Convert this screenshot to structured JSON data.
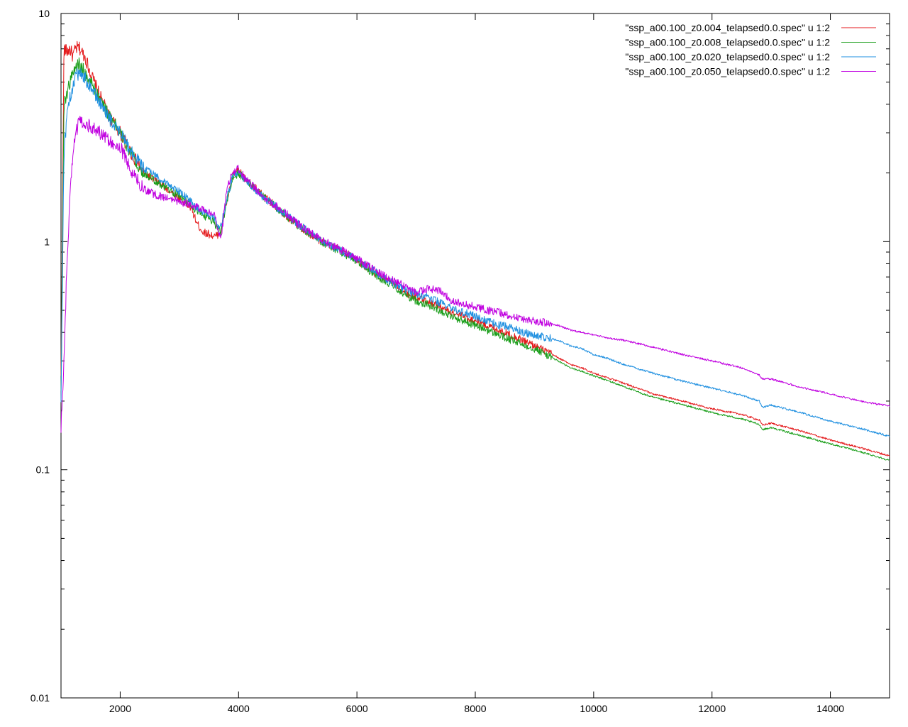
{
  "chart_data": {
    "type": "line",
    "title": "",
    "xlabel": "",
    "ylabel": "",
    "xlim": [
      1000,
      15000
    ],
    "ylim": [
      0.01,
      10
    ],
    "y_scale": "log",
    "grid": false,
    "legend_position": "top-right",
    "x_ticks": [
      {
        "value": 2000,
        "label": "2000"
      },
      {
        "value": 4000,
        "label": "4000"
      },
      {
        "value": 6000,
        "label": "6000"
      },
      {
        "value": 8000,
        "label": "8000"
      },
      {
        "value": 10000,
        "label": "10000"
      },
      {
        "value": 12000,
        "label": "12000"
      },
      {
        "value": 14000,
        "label": "14000"
      }
    ],
    "y_ticks": [
      {
        "value": 0.01,
        "label": "0.01"
      },
      {
        "value": 0.1,
        "label": "0.1"
      },
      {
        "value": 1,
        "label": "1"
      },
      {
        "value": 10,
        "label": "10"
      }
    ],
    "series": [
      {
        "name": "\"ssp_a00.100_z0.004_telapsed0.0.spec\" u 1:2",
        "color": "#e41a1c",
        "x": [
          1000,
          1050,
          1100,
          1150,
          1200,
          1250,
          1300,
          1350,
          1400,
          1500,
          1600,
          1800,
          2000,
          2200,
          2400,
          2600,
          2800,
          3000,
          3200,
          3300,
          3400,
          3500,
          3600,
          3700,
          3800,
          3900,
          4000,
          4100,
          4200,
          4300,
          4400,
          4600,
          4800,
          5000,
          5200,
          5400,
          5600,
          5800,
          6000,
          6200,
          6400,
          6600,
          6800,
          7000,
          7200,
          7400,
          7600,
          7800,
          8000,
          8200,
          8400,
          8600,
          8800,
          9000,
          9200,
          9400,
          9500,
          9600,
          9800,
          10000,
          10200,
          10500,
          10900,
          11000,
          11500,
          12000,
          12500,
          12800,
          12850,
          13000,
          13500,
          14000,
          14500,
          15000
        ],
        "y": [
          0.25,
          7.0,
          6.8,
          7.0,
          6.5,
          7.0,
          7.1,
          6.8,
          6.5,
          5.5,
          4.7,
          3.6,
          3.0,
          2.4,
          2.0,
          1.85,
          1.7,
          1.55,
          1.4,
          1.2,
          1.1,
          1.08,
          1.05,
          1.1,
          1.5,
          1.95,
          2.05,
          1.9,
          1.8,
          1.7,
          1.6,
          1.45,
          1.3,
          1.18,
          1.08,
          1.0,
          0.95,
          0.9,
          0.83,
          0.76,
          0.7,
          0.66,
          0.6,
          0.57,
          0.55,
          0.52,
          0.49,
          0.47,
          0.45,
          0.43,
          0.41,
          0.39,
          0.37,
          0.35,
          0.33,
          0.31,
          0.3,
          0.29,
          0.28,
          0.265,
          0.255,
          0.24,
          0.22,
          0.215,
          0.2,
          0.185,
          0.175,
          0.165,
          0.157,
          0.16,
          0.148,
          0.135,
          0.125,
          0.115
        ]
      },
      {
        "name": "\"ssp_a00.100_z0.008_telapsed0.0.spec\" u 1:2",
        "color": "#1a9e1a",
        "x": [
          1000,
          1050,
          1100,
          1150,
          1200,
          1250,
          1300,
          1350,
          1400,
          1500,
          1600,
          1800,
          2000,
          2200,
          2400,
          2600,
          2800,
          3000,
          3200,
          3300,
          3400,
          3500,
          3600,
          3700,
          3800,
          3900,
          4000,
          4100,
          4200,
          4300,
          4400,
          4600,
          4800,
          5000,
          5200,
          5400,
          5600,
          5800,
          6000,
          6200,
          6400,
          6600,
          6800,
          7000,
          7200,
          7400,
          7600,
          7800,
          8000,
          8200,
          8400,
          8600,
          8800,
          9000,
          9200,
          9400,
          9500,
          9600,
          9800,
          10000,
          10200,
          10500,
          10900,
          11000,
          11500,
          12000,
          12500,
          12800,
          12850,
          13000,
          13500,
          14000,
          14500,
          15000
        ],
        "y": [
          0.22,
          4.0,
          4.5,
          5.0,
          5.5,
          5.8,
          6.0,
          5.8,
          5.5,
          5.0,
          4.5,
          3.6,
          3.0,
          2.4,
          2.0,
          1.85,
          1.7,
          1.58,
          1.45,
          1.35,
          1.3,
          1.28,
          1.2,
          1.1,
          1.5,
          1.9,
          2.0,
          1.88,
          1.78,
          1.68,
          1.58,
          1.44,
          1.3,
          1.18,
          1.08,
          1.0,
          0.94,
          0.88,
          0.82,
          0.75,
          0.69,
          0.64,
          0.59,
          0.55,
          0.53,
          0.5,
          0.47,
          0.45,
          0.43,
          0.41,
          0.39,
          0.37,
          0.355,
          0.34,
          0.32,
          0.3,
          0.29,
          0.28,
          0.27,
          0.258,
          0.248,
          0.232,
          0.212,
          0.208,
          0.193,
          0.178,
          0.167,
          0.158,
          0.15,
          0.153,
          0.141,
          0.13,
          0.12,
          0.11
        ]
      },
      {
        "name": "\"ssp_a00.100_z0.020_telapsed0.0.spec\" u 1:2",
        "color": "#1e8fe0",
        "x": [
          1000,
          1050,
          1100,
          1150,
          1200,
          1250,
          1300,
          1350,
          1400,
          1500,
          1600,
          1800,
          2000,
          2200,
          2400,
          2600,
          2800,
          3000,
          3200,
          3300,
          3400,
          3500,
          3600,
          3700,
          3800,
          3900,
          4000,
          4100,
          4200,
          4300,
          4400,
          4600,
          4800,
          5000,
          5200,
          5400,
          5600,
          5800,
          6000,
          6200,
          6400,
          6600,
          6800,
          7000,
          7200,
          7400,
          7600,
          7800,
          8000,
          8200,
          8400,
          8600,
          8800,
          9000,
          9200,
          9400,
          9500,
          9600,
          9800,
          10000,
          10200,
          10500,
          10900,
          11000,
          11500,
          12000,
          12500,
          12800,
          12850,
          13000,
          13500,
          14000,
          14500,
          15000
        ],
        "y": [
          0.2,
          2.5,
          3.5,
          4.2,
          4.8,
          5.3,
          5.5,
          5.4,
          5.2,
          4.8,
          4.3,
          3.5,
          3.0,
          2.45,
          2.1,
          1.95,
          1.8,
          1.65,
          1.5,
          1.4,
          1.35,
          1.32,
          1.25,
          1.15,
          1.55,
          1.92,
          2.0,
          1.88,
          1.78,
          1.68,
          1.58,
          1.44,
          1.32,
          1.2,
          1.1,
          1.01,
          0.95,
          0.89,
          0.83,
          0.77,
          0.71,
          0.66,
          0.62,
          0.59,
          0.57,
          0.54,
          0.51,
          0.49,
          0.47,
          0.45,
          0.43,
          0.42,
          0.4,
          0.39,
          0.38,
          0.37,
          0.36,
          0.35,
          0.34,
          0.32,
          0.31,
          0.29,
          0.27,
          0.265,
          0.245,
          0.228,
          0.212,
          0.2,
          0.188,
          0.192,
          0.178,
          0.163,
          0.152,
          0.14
        ]
      },
      {
        "name": "\"ssp_a00.100_z0.050_telapsed0.0.spec\" u 1:2",
        "color": "#c000e0",
        "x": [
          1000,
          1050,
          1100,
          1150,
          1200,
          1250,
          1300,
          1350,
          1400,
          1500,
          1600,
          1800,
          2000,
          2200,
          2400,
          2600,
          2800,
          3000,
          3200,
          3300,
          3400,
          3500,
          3600,
          3700,
          3800,
          3900,
          4000,
          4100,
          4200,
          4300,
          4400,
          4600,
          4800,
          5000,
          5200,
          5400,
          5600,
          5800,
          6000,
          6200,
          6400,
          6600,
          6800,
          7000,
          7200,
          7400,
          7600,
          7800,
          8000,
          8200,
          8400,
          8600,
          8800,
          9000,
          9200,
          9400,
          9500,
          9600,
          9800,
          10000,
          10200,
          10500,
          10900,
          11000,
          11500,
          12000,
          12500,
          12800,
          12850,
          13000,
          13500,
          14000,
          14500,
          15000
        ],
        "y": [
          0.15,
          0.3,
          0.8,
          1.5,
          2.5,
          3.0,
          3.3,
          3.4,
          3.3,
          3.2,
          3.1,
          2.8,
          2.6,
          2.0,
          1.7,
          1.6,
          1.55,
          1.5,
          1.45,
          1.42,
          1.4,
          1.35,
          1.3,
          1.0,
          1.7,
          2.0,
          2.1,
          1.9,
          1.8,
          1.7,
          1.6,
          1.45,
          1.33,
          1.2,
          1.1,
          1.02,
          0.96,
          0.9,
          0.84,
          0.78,
          0.72,
          0.68,
          0.64,
          0.6,
          0.62,
          0.61,
          0.55,
          0.53,
          0.52,
          0.5,
          0.49,
          0.47,
          0.46,
          0.45,
          0.44,
          0.43,
          0.42,
          0.41,
          0.4,
          0.39,
          0.38,
          0.37,
          0.35,
          0.345,
          0.32,
          0.3,
          0.28,
          0.26,
          0.25,
          0.25,
          0.23,
          0.215,
          0.2,
          0.19
        ]
      }
    ]
  }
}
